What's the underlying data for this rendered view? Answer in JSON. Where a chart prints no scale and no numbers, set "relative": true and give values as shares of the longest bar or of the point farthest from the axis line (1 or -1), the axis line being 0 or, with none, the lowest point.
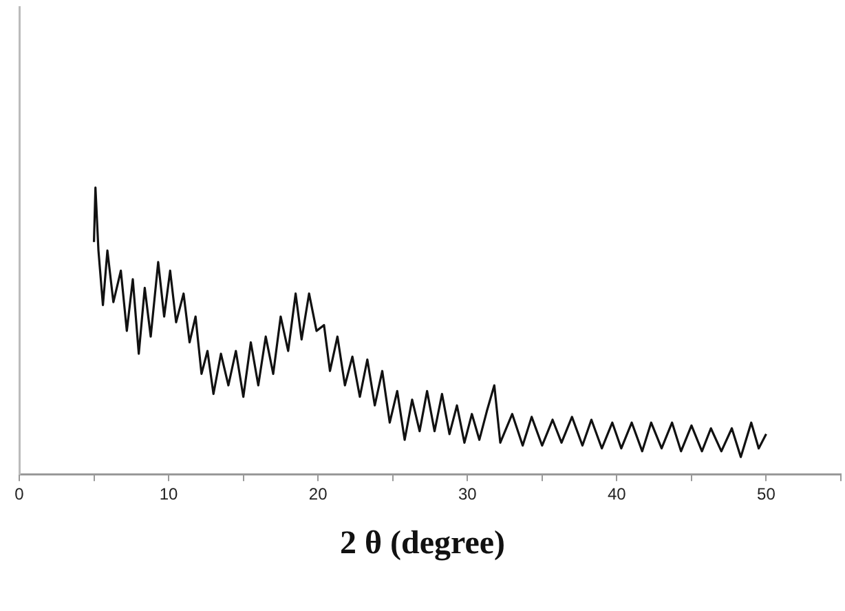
{
  "chart_data": {
    "type": "line",
    "relative": true,
    "xlabel": "2 θ (degree)",
    "xlim": [
      0,
      55
    ],
    "xticks": [
      0,
      {
        "value": 5,
        "label": null
      },
      10,
      {
        "value": 15,
        "label": null
      },
      20,
      {
        "value": 25,
        "label": null
      },
      30,
      {
        "value": 35,
        "label": null
      },
      40,
      {
        "value": 45,
        "label": null
      },
      50,
      {
        "value": 55,
        "label": null
      }
    ],
    "grid": false,
    "legend": false,
    "marker": "none",
    "line_style": "solid",
    "series": [
      {
        "color": "#111111",
        "x": [
          5.0,
          5.1,
          5.3,
          5.6,
          5.9,
          6.3,
          6.8,
          7.2,
          7.6,
          8.0,
          8.4,
          8.8,
          9.3,
          9.7,
          10.1,
          10.5,
          11.0,
          11.4,
          11.8,
          12.2,
          12.6,
          13.0,
          13.5,
          14.0,
          14.5,
          15.0,
          15.5,
          16.0,
          16.5,
          17.0,
          17.5,
          18.0,
          18.5,
          18.9,
          19.4,
          19.9,
          20.4,
          20.8,
          21.3,
          21.8,
          22.3,
          22.8,
          23.3,
          23.8,
          24.3,
          24.8,
          25.3,
          25.8,
          26.3,
          26.8,
          27.3,
          27.8,
          28.3,
          28.8,
          29.3,
          29.8,
          30.3,
          30.8,
          31.3,
          31.8,
          32.2,
          33.0,
          33.7,
          34.3,
          35.0,
          35.7,
          36.3,
          37.0,
          37.7,
          38.3,
          39.0,
          39.7,
          40.3,
          41.0,
          41.7,
          42.3,
          43.0,
          43.7,
          44.3,
          45.0,
          45.7,
          46.3,
          47.0,
          47.7,
          48.3,
          49.0,
          49.5,
          50.0
        ],
        "values": [
          0.81,
          1,
          0.78,
          0.59,
          0.78,
          0.6,
          0.71,
          0.5,
          0.68,
          0.42,
          0.65,
          0.48,
          0.74,
          0.55,
          0.71,
          0.53,
          0.63,
          0.46,
          0.55,
          0.35,
          0.43,
          0.28,
          0.42,
          0.31,
          0.43,
          0.27,
          0.46,
          0.31,
          0.48,
          0.35,
          0.55,
          0.43,
          0.63,
          0.47,
          0.63,
          0.5,
          0.52,
          0.36,
          0.48,
          0.31,
          0.41,
          0.27,
          0.4,
          0.24,
          0.36,
          0.18,
          0.29,
          0.12,
          0.26,
          0.15,
          0.29,
          0.15,
          0.28,
          0.14,
          0.24,
          0.11,
          0.21,
          0.12,
          0.22,
          0.31,
          0.11,
          0.21,
          0.1,
          0.2,
          0.1,
          0.19,
          0.11,
          0.2,
          0.1,
          0.19,
          0.09,
          0.18,
          0.09,
          0.18,
          0.08,
          0.18,
          0.09,
          0.18,
          0.08,
          0.17,
          0.08,
          0.16,
          0.08,
          0.16,
          0.06,
          0.18,
          0.09,
          0.14
        ]
      }
    ]
  }
}
